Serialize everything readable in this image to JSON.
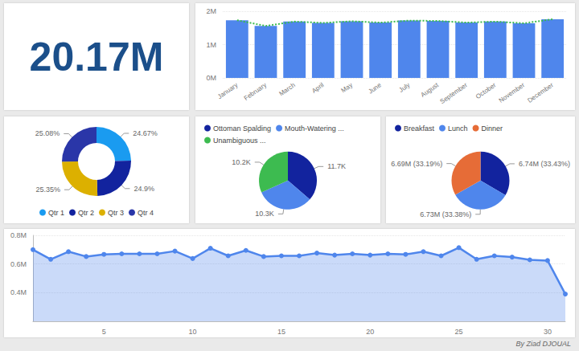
{
  "chart_data": [
    {
      "type": "card",
      "text": "20.17M"
    },
    {
      "type": "bar",
      "categories": [
        "January",
        "February",
        "March",
        "April",
        "May",
        "June",
        "July",
        "August",
        "September",
        "October",
        "November",
        "December"
      ],
      "series": [
        {
          "type": "bar",
          "color": "#4f86ec",
          "values": [
            1730000,
            1560000,
            1690000,
            1650000,
            1700000,
            1660000,
            1720000,
            1710000,
            1660000,
            1690000,
            1640000,
            1760000
          ]
        },
        {
          "type": "line",
          "color": "#3dbb50",
          "line_style": "dotted",
          "marker": "none",
          "values": [
            1730000,
            1560000,
            1690000,
            1650000,
            1700000,
            1660000,
            1720000,
            1710000,
            1660000,
            1690000,
            1640000,
            1760000
          ]
        }
      ],
      "ylim": [
        0,
        2000000
      ],
      "yticks": [
        {
          "value": 0,
          "label": "0M"
        },
        {
          "value": 1000000,
          "label": "1M"
        },
        {
          "value": 2000000,
          "label": "2M"
        }
      ],
      "grid": true
    },
    {
      "type": "donut",
      "categories": [
        "Qtr 1",
        "Qtr 2",
        "Qtr 3",
        "Qtr 4"
      ],
      "values": [
        24.67,
        24.9,
        25.35,
        25.08
      ],
      "value_labels": [
        "24.67%",
        "24.9%",
        "25.35%",
        "25.08%"
      ],
      "colors": [
        "#1a9bf0",
        "#12239e",
        "#dcb000",
        "#2a36a8"
      ],
      "data_labels": true,
      "legend": "bottom"
    },
    {
      "type": "pie",
      "categories": [
        "Ottoman Spalding",
        "Mouth-Watering ...",
        "Unambiguous ..."
      ],
      "values": [
        11700,
        10300,
        10200
      ],
      "value_labels": [
        "11.7K",
        "10.3K",
        "10.2K"
      ],
      "colors": [
        "#12239e",
        "#4f86ec",
        "#3dbb50"
      ],
      "data_labels": true,
      "legend": "top-left"
    },
    {
      "type": "pie",
      "categories": [
        "Breakfast",
        "Lunch",
        "Dinner"
      ],
      "values": [
        6740000,
        6730000,
        6690000
      ],
      "value_labels": [
        "6.74M (33.43%)",
        "6.73M (33.38%)",
        "6.69M (33.19%)"
      ],
      "colors": [
        "#12239e",
        "#4f86ec",
        "#e66c37"
      ],
      "data_labels": true,
      "legend": "top-left"
    },
    {
      "type": "area",
      "x": [
        1,
        2,
        3,
        4,
        5,
        6,
        7,
        8,
        9,
        10,
        11,
        12,
        13,
        14,
        15,
        16,
        17,
        18,
        19,
        20,
        21,
        22,
        23,
        24,
        25,
        26,
        27,
        28,
        29,
        30,
        31
      ],
      "values": [
        700000,
        633000,
        686000,
        652000,
        667000,
        671000,
        671000,
        671000,
        690000,
        638000,
        710000,
        657000,
        695000,
        652000,
        657000,
        657000,
        676000,
        662000,
        671000,
        662000,
        671000,
        667000,
        686000,
        657000,
        714000,
        633000,
        657000,
        648000,
        629000,
        624000,
        390000
      ],
      "color": "#4f86ec",
      "marker": "circle",
      "xlim": [
        1,
        31
      ],
      "xticks": [
        5,
        10,
        15,
        20,
        25,
        30
      ],
      "ylim": [
        200000,
        800000
      ],
      "yticks": [
        {
          "value": 400000,
          "label": "0.4M"
        },
        {
          "value": 600000,
          "label": "0.6M"
        },
        {
          "value": 800000,
          "label": "0.8M"
        }
      ],
      "grid": true
    }
  ],
  "footer": "By Ziad DJOUAL"
}
